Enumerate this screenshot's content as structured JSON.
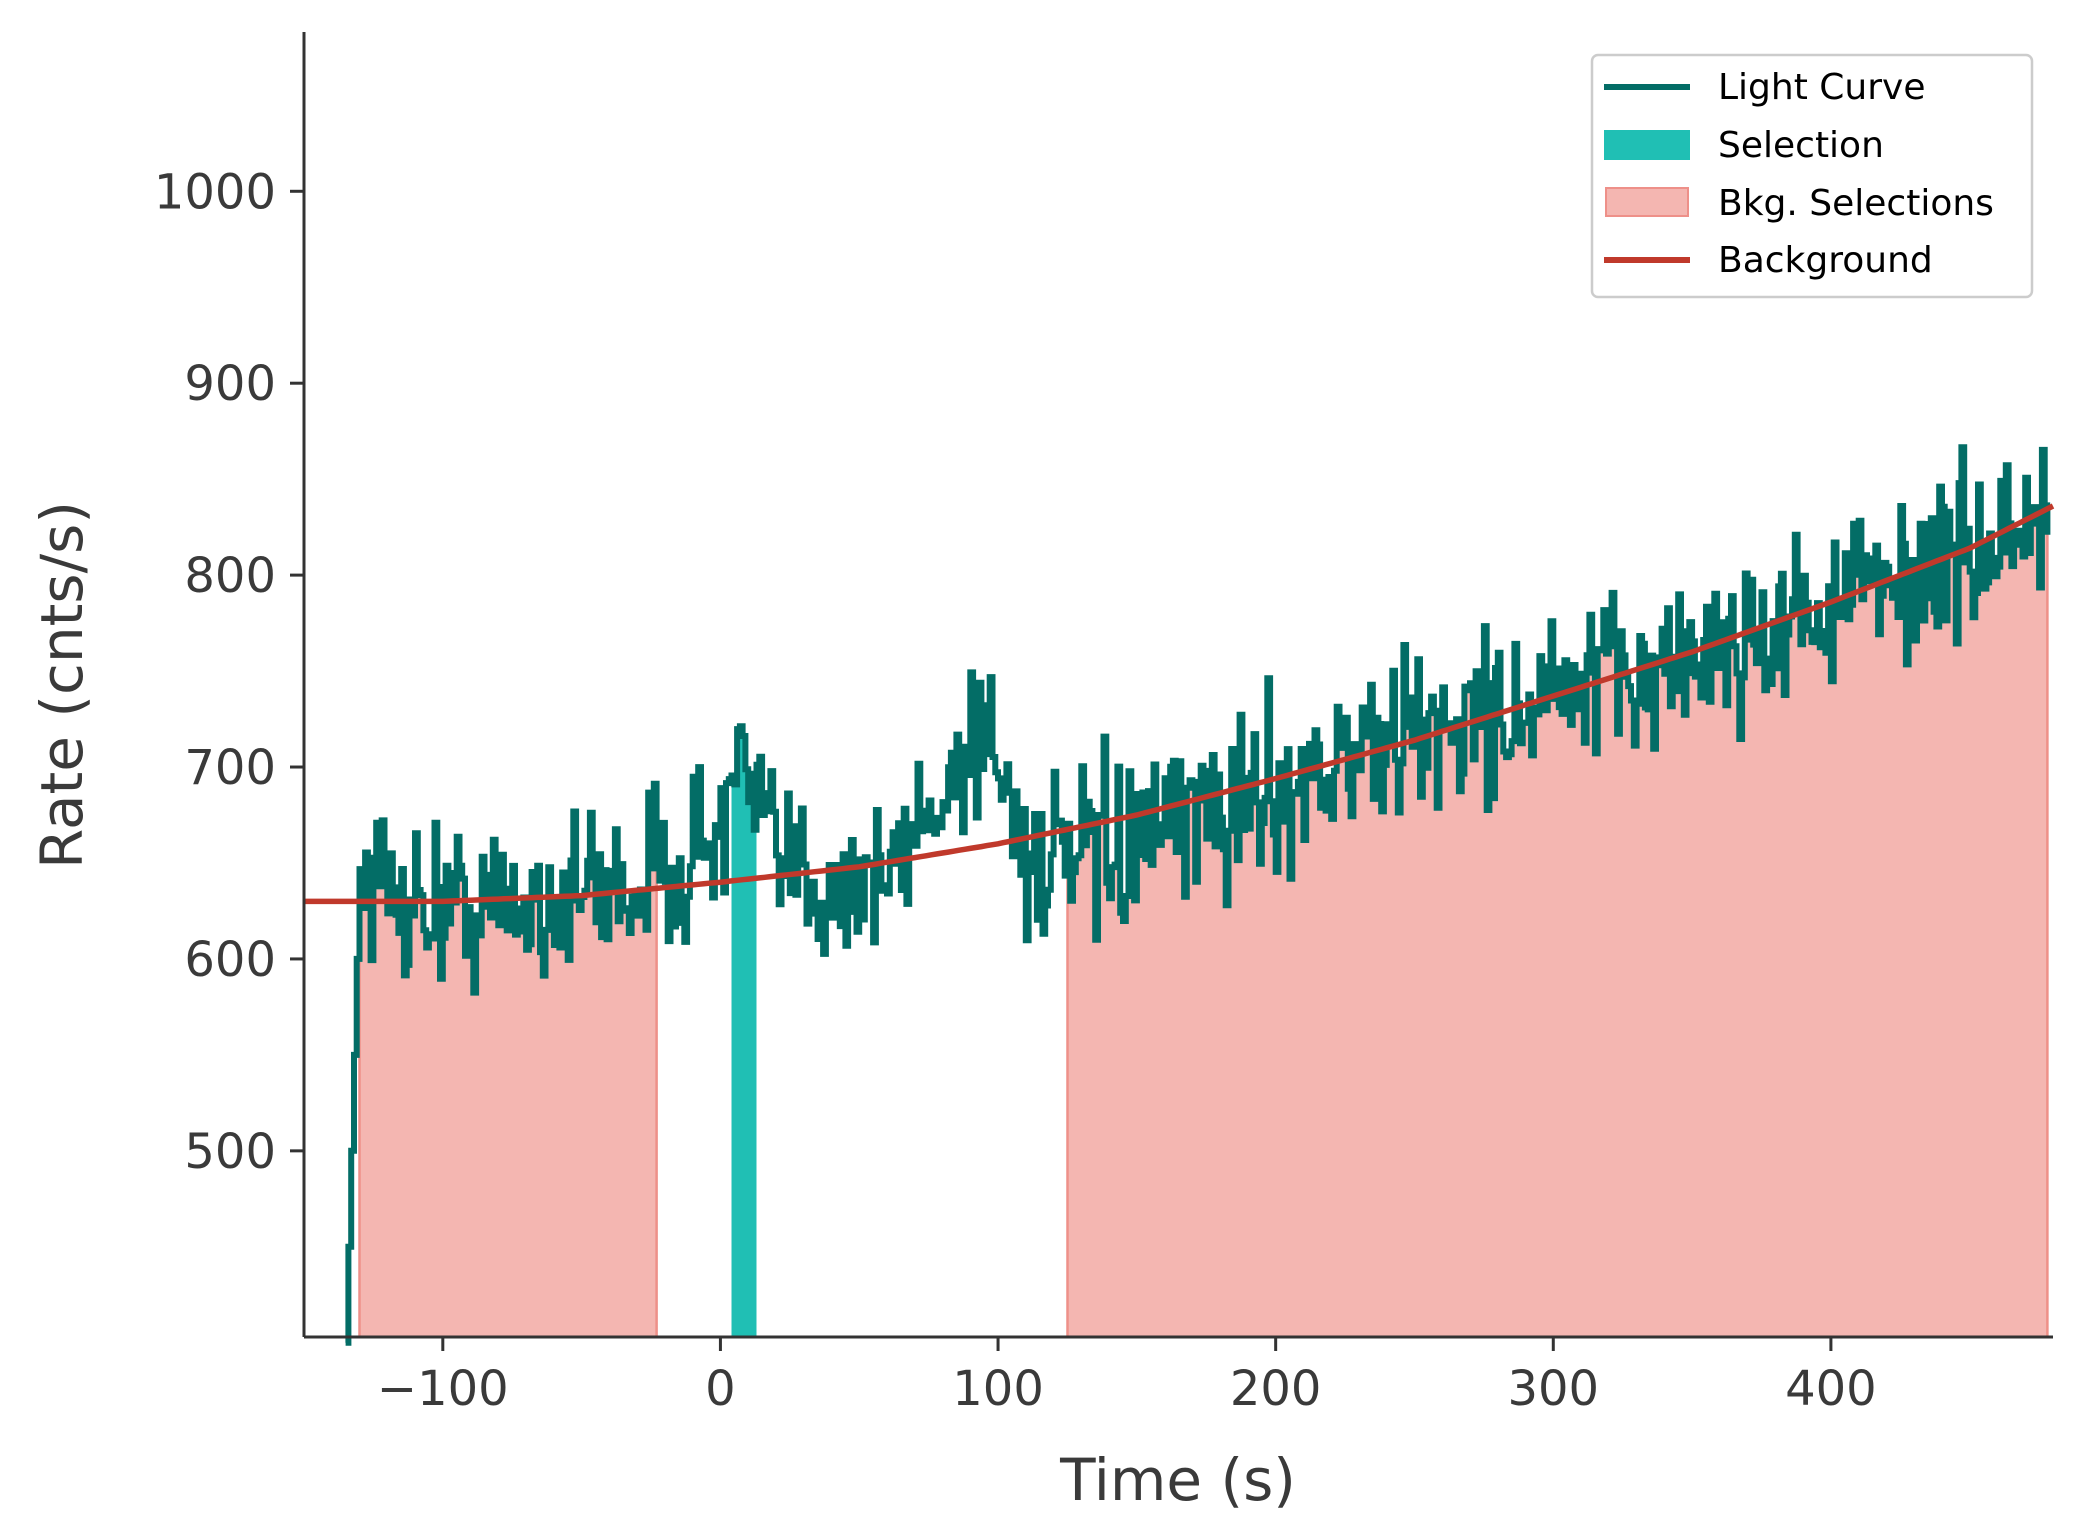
{
  "chart_data": {
    "type": "line",
    "xlabel": "Time (s)",
    "ylabel": "Rate (cnts/s)",
    "xlim": [
      -150,
      480
    ],
    "ylim": [
      403,
      1083
    ],
    "xticks": [
      -100,
      0,
      100,
      200,
      300,
      400
    ],
    "xtick_labels": [
      "−100",
      "0",
      "100",
      "200",
      "300",
      "400"
    ],
    "yticks": [
      500,
      600,
      700,
      800,
      900,
      1000
    ],
    "ytick_labels": [
      "500",
      "600",
      "700",
      "800",
      "900",
      "1000"
    ],
    "legend_position": "top-right",
    "colors": {
      "light_curve": "#036d66",
      "selection": "#20bfb4",
      "bkg_fill": "#f4b6b1",
      "bkg_edge": "#ee9089",
      "background": "#c0392b",
      "axis": "#333333"
    },
    "legend": [
      {
        "label": "Light Curve",
        "kind": "line",
        "color": "#036d66"
      },
      {
        "label": "Selection",
        "kind": "patch",
        "color": "#20bfb4"
      },
      {
        "label": "Bkg. Selections",
        "kind": "patch",
        "color": "#f4b6b1",
        "edge": "#ee9089"
      },
      {
        "label": "Background",
        "kind": "line",
        "color": "#c0392b"
      }
    ],
    "selection_interval": [
      4,
      13
    ],
    "bkg_intervals": [
      [
        -130,
        -23
      ],
      [
        125,
        478
      ]
    ],
    "background_curve": {
      "description": "quadratic fit",
      "x": [
        -150,
        -100,
        -50,
        0,
        50,
        100,
        150,
        200,
        250,
        300,
        350,
        400,
        450,
        480
      ],
      "y": [
        630,
        630,
        633,
        640,
        648,
        660,
        675,
        694,
        714,
        737,
        760,
        786,
        814,
        836
      ]
    },
    "light_curve_trend": {
      "x": [
        -135,
        -130,
        -120,
        -100,
        -80,
        -60,
        -40,
        -20,
        0,
        5,
        10,
        20,
        40,
        60,
        80,
        95,
        110,
        125,
        150,
        200,
        250,
        300,
        350,
        400,
        450,
        478
      ],
      "y": [
        400,
        650,
        635,
        628,
        626,
        632,
        638,
        645,
        665,
        700,
        690,
        648,
        640,
        642,
        690,
        725,
        655,
        648,
        660,
        690,
        718,
        735,
        758,
        785,
        812,
        830
      ]
    },
    "light_curve_noise_amplitude": 22,
    "light_curve_bin_width": 1
  }
}
